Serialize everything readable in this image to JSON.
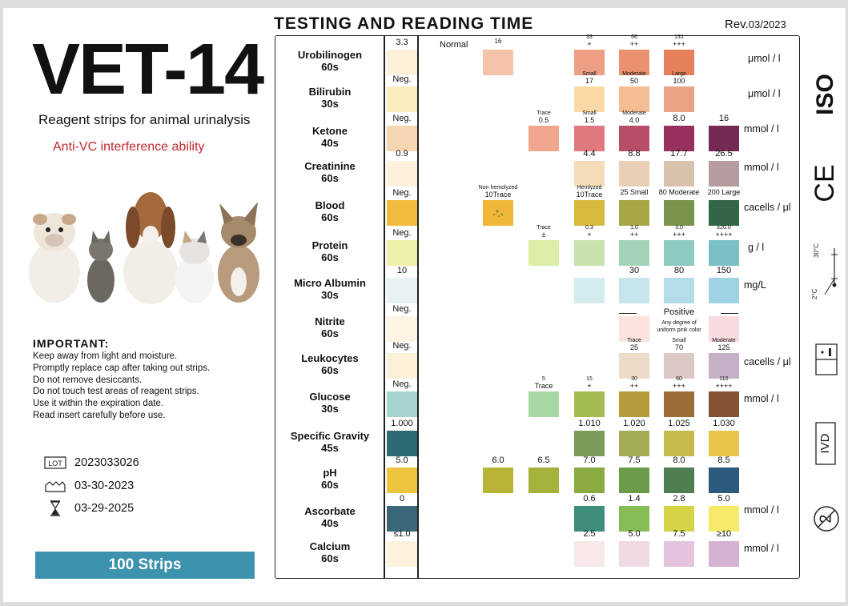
{
  "brand": {
    "title": "VET-14",
    "subtitle": "Reagent strips for animal urinalysis",
    "feature": "Anti-VC interference ability"
  },
  "important": {
    "title": "IMPORTANT:",
    "notes": [
      "Keep away from light and moisture.",
      "Promptly replace cap after taking out strips.",
      "Do not remove desiccants.",
      "Do not touch test areas of reagent strips.",
      "Use it within the expiration date.",
      "Read insert carefully before use."
    ]
  },
  "lot": {
    "icon": "lot-icon",
    "label": "LOT",
    "value": "2023033026"
  },
  "manufacture": {
    "icon": "manufacture-date-icon",
    "value": "03-30-2023"
  },
  "expiry": {
    "icon": "hourglass-icon",
    "value": "03-29-2025"
  },
  "package": {
    "label": "100 Strips",
    "color": "#3d93ad"
  },
  "chart": {
    "heading": "TESTING AND READING TIME",
    "rev_prefix": "Rev.",
    "rev_value": "03/2023"
  },
  "tests": [
    {
      "name": "Urobilinogen",
      "time": "60s",
      "unit": "μmol / l",
      "ref": {
        "label": "3.3",
        "color": "#fdf1da"
      },
      "pads": [
        {
          "col": 1,
          "color": "#f5c3a8",
          "top": "16"
        },
        {
          "col": 3,
          "color": "#ee9e82",
          "top": "33",
          "sub": "+"
        },
        {
          "col": 4,
          "color": "#ec9072",
          "top": "66",
          "sub": "++"
        },
        {
          "col": 5,
          "color": "#e5805a",
          "top": "131",
          "sub": "+++"
        }
      ]
    },
    {
      "name": "Bilirubin",
      "time": "30s",
      "unit": "μmol / l",
      "ref": {
        "label": "Neg.",
        "color": "#fbecc0"
      },
      "pads": [
        {
          "col": 3,
          "color": "#fbd9a6",
          "top": "Small",
          "sub": "17"
        },
        {
          "col": 4,
          "color": "#f4bd93",
          "top": "Moderate",
          "sub": "50"
        },
        {
          "col": 5,
          "color": "#e9a283",
          "top": "Large",
          "sub": "100"
        }
      ]
    },
    {
      "name": "Ketone",
      "time": "40s",
      "unit": "mmol / l",
      "ref": {
        "label": "Neg.",
        "color": "#f6d6b2"
      },
      "pads": [
        {
          "col": 2,
          "color": "#f0a78d",
          "top": "Trace",
          "sub": "0.5"
        },
        {
          "col": 3,
          "color": "#e07880",
          "top": "Small",
          "sub": "1.5"
        },
        {
          "col": 4,
          "color": "#b64e6a",
          "top": "Moderate",
          "sub": "4.0"
        },
        {
          "col": 5,
          "color": "#98305f",
          "top": "8.0"
        },
        {
          "col": 6,
          "color": "#742a55",
          "top": "16"
        }
      ]
    },
    {
      "name": "Creatinine",
      "time": "60s",
      "unit": "mmol / l",
      "ref": {
        "label": "0.9",
        "color": "#fdf1dd"
      },
      "pads": [
        {
          "col": 3,
          "color": "#f4dcb6",
          "top": "4.4"
        },
        {
          "col": 4,
          "color": "#e8cfb5",
          "top": "8.8"
        },
        {
          "col": 5,
          "color": "#d8c1ad",
          "top": "17.7"
        },
        {
          "col": 6,
          "color": "#b69c9e",
          "top": "26.5"
        }
      ]
    },
    {
      "name": "Blood",
      "time": "60s",
      "unit": "cacells / μl",
      "ref": {
        "label": "Neg.",
        "color": "#f1bb3c"
      },
      "pads": [
        {
          "col": 1,
          "color": "#f0b637",
          "top": "Non hemolyzed",
          "sub": "10Trace",
          "dots": true
        },
        {
          "col": 3,
          "color": "#d7ba3d",
          "top": "Hemlyzed",
          "sub": "10Trace"
        },
        {
          "col": 4,
          "color": "#a8a745",
          "top": "25 Small"
        },
        {
          "col": 5,
          "color": "#78934c",
          "top": "80 Moderate"
        },
        {
          "col": 6,
          "color": "#336645",
          "top": "200 Large"
        }
      ]
    },
    {
      "name": "Protein",
      "time": "60s",
      "unit": "g / l",
      "ref": {
        "label": "Neg.",
        "color": "#eef1a9"
      },
      "pads": [
        {
          "col": 2,
          "color": "#ddeea7",
          "top": "Trace",
          "sub": "±"
        },
        {
          "col": 3,
          "color": "#c8e2ad",
          "top": "0.3",
          "sub": "+"
        },
        {
          "col": 4,
          "color": "#a1d3b9",
          "top": "1.0",
          "sub": "++"
        },
        {
          "col": 5,
          "color": "#8ccac2",
          "top": "3.0",
          "sub": "+++"
        },
        {
          "col": 6,
          "color": "#7bc0c5",
          "top": "≥20.0",
          "sub": "++++"
        }
      ]
    },
    {
      "name": "Micro Albumin",
      "time": "30s",
      "unit": "mg/L",
      "ref": {
        "label": "10",
        "color": "#e8f1f3"
      },
      "pads": [
        {
          "col": 3,
          "color": "#d4ebf0"
        },
        {
          "col": 4,
          "color": "#c5e4ec",
          "top": "30"
        },
        {
          "col": 5,
          "color": "#b3dde9",
          "top": "80"
        },
        {
          "col": 6,
          "color": "#9ed2e4",
          "top": "150"
        }
      ]
    },
    {
      "name": "Nitrite",
      "time": "60s",
      "unit": "",
      "ref": {
        "label": "Neg.",
        "color": "#fdf4e3"
      },
      "positive_label": "Positive",
      "positive_note": [
        "Any degree of",
        "uniform pink color"
      ],
      "pads": [
        {
          "col": 4,
          "color": "#fbe4dd"
        },
        {
          "col": 6,
          "color": "#f8dbe1"
        }
      ]
    },
    {
      "name": "Leukocytes",
      "time": "60s",
      "unit": "cacells / μl",
      "ref": {
        "label": "Neg.",
        "color": "#fbf1d8"
      },
      "pads": [
        {
          "col": 4,
          "color": "#ecdbc9",
          "top": "Trace",
          "sub": "25"
        },
        {
          "col": 5,
          "color": "#dcc9c7",
          "top": "Small",
          "sub": "70"
        },
        {
          "col": 6,
          "color": "#c5b0c6",
          "top": "Moderate",
          "sub": "125"
        }
      ]
    },
    {
      "name": "Glucose",
      "time": "30s",
      "unit": "mmol / l",
      "ref": {
        "label": "Neg.",
        "color": "#a5d4d0"
      },
      "pads": [
        {
          "col": 2,
          "color": "#a9d8a7",
          "top": "5",
          "sub": "Trace"
        },
        {
          "col": 3,
          "color": "#a3bc52",
          "top": "15",
          "sub": "+"
        },
        {
          "col": 4,
          "color": "#b59b39",
          "top": "30",
          "sub": "++"
        },
        {
          "col": 5,
          "color": "#9d6d37",
          "top": "60",
          "sub": "+++"
        },
        {
          "col": 6,
          "color": "#855234",
          "top": "110",
          "sub": "++++"
        }
      ]
    },
    {
      "name": "Specific Gravity",
      "time": "45s",
      "unit": "",
      "ref": {
        "label": "1.000",
        "color": "#2e6a74"
      },
      "pads": [
        {
          "col": 3,
          "color": "#7c9a5a",
          "top": "1.010"
        },
        {
          "col": 4,
          "color": "#a3ac55",
          "top": "1.020"
        },
        {
          "col": 5,
          "color": "#c5bb4c",
          "top": "1.025"
        },
        {
          "col": 6,
          "color": "#e6c54a",
          "top": "1.030"
        }
      ]
    },
    {
      "name": "pH",
      "time": "60s",
      "unit": "",
      "ref": {
        "label": "5.0",
        "color": "#edc43e"
      },
      "pads": [
        {
          "col": 1,
          "color": "#b8b435",
          "top": "6.0"
        },
        {
          "col": 2,
          "color": "#a3b23d",
          "top": "6.5"
        },
        {
          "col": 3,
          "color": "#8aaa42",
          "top": "7.0"
        },
        {
          "col": 4,
          "color": "#6b9a48",
          "top": "7.5"
        },
        {
          "col": 5,
          "color": "#4e7e52",
          "top": "8.0"
        },
        {
          "col": 6,
          "color": "#2c5a7c",
          "top": "8.5"
        }
      ]
    },
    {
      "name": "Ascorbate",
      "time": "40s",
      "unit": "mmol / l",
      "ref": {
        "label": "0",
        "color": "#3b6878"
      },
      "pads": [
        {
          "col": 3,
          "color": "#3f8d7b",
          "top": "0.6"
        },
        {
          "col": 4,
          "color": "#86bc55",
          "top": "1.4"
        },
        {
          "col": 5,
          "color": "#d5d447",
          "top": "2.8"
        },
        {
          "col": 6,
          "color": "#f7ea6b",
          "top": "5.0"
        }
      ]
    },
    {
      "name": "Calcium",
      "time": "60s",
      "unit": "mmol / l",
      "ref": {
        "label": "≤1.0",
        "color": "#fdf2dc"
      },
      "pads": [
        {
          "col": 3,
          "color": "#f7e9ea",
          "top": "2.5"
        },
        {
          "col": 4,
          "color": "#efd9e3",
          "top": "5.0"
        },
        {
          "col": 5,
          "color": "#e4c4dc",
          "top": "7.5"
        },
        {
          "col": 6,
          "color": "#d5b2d2",
          "top": "≥10"
        }
      ]
    }
  ],
  "normal_label": "Normal",
  "symbols": {
    "iso": "ISO",
    "ce": "CE",
    "temp_high": "30°C",
    "temp_low": "2°C",
    "ivd": "IVD",
    "temperature_icon": "thermometer-icon",
    "manual_icon": "instructions-book-icon",
    "single_use_icon": "do-not-reuse-icon"
  }
}
